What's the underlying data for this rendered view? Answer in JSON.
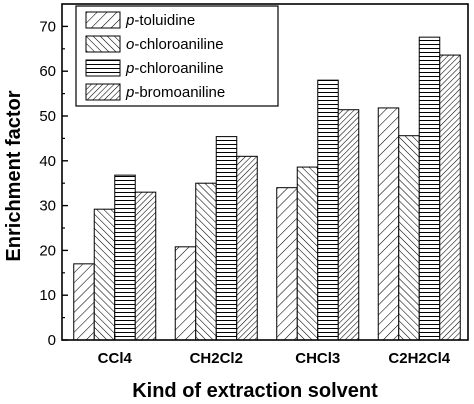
{
  "chart_data": {
    "type": "bar",
    "title": "",
    "xlabel": "Kind of extraction solvent",
    "ylabel": "Enrichment factor",
    "categories": [
      "CCl4",
      "CH2Cl2",
      "CHCl3",
      "C2H2Cl4"
    ],
    "ylim": [
      0,
      75
    ],
    "yticks": [
      0,
      10,
      20,
      30,
      40,
      50,
      60,
      70
    ],
    "grid": false,
    "legend_position": "top-left",
    "series": [
      {
        "name_prefix": "p",
        "name_suffix": "-toluidine",
        "values": [
          17,
          20.8,
          34,
          51.8
        ],
        "pattern": "diag-forward"
      },
      {
        "name_prefix": "o",
        "name_suffix": "-chloroaniline",
        "values": [
          29.2,
          35,
          38.6,
          45.6
        ],
        "pattern": "diag-back"
      },
      {
        "name_prefix": "p",
        "name_suffix": "-chloroaniline",
        "values": [
          36.8,
          45.4,
          58,
          67.6
        ],
        "pattern": "horizontal"
      },
      {
        "name_prefix": "p",
        "name_suffix": "-bromoaniline",
        "values": [
          33,
          41,
          51.4,
          63.6
        ],
        "pattern": "diag-forward-dense"
      }
    ]
  }
}
